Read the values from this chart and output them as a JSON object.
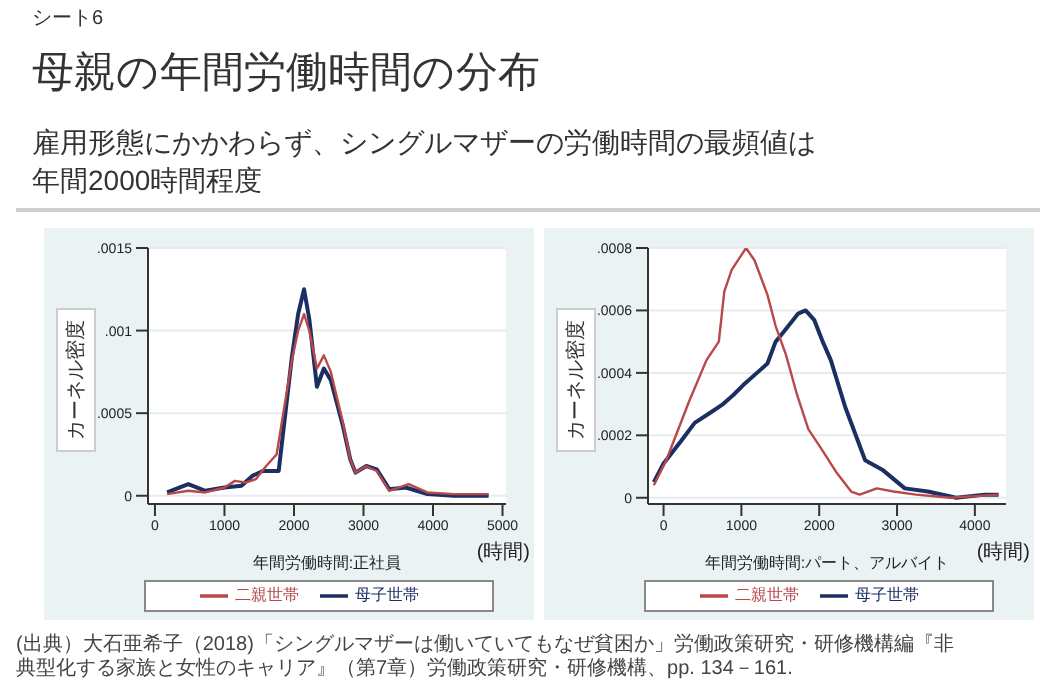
{
  "chart_data": [
    {
      "type": "line",
      "title": "母親の年間労働時間の分布",
      "subtitle": "雇用形態にかかわらず、シングルマザーの労働時間の最頻値は年間2000時間程度",
      "annotations": [
        "シート6",
        "(時間)",
        "(出典）大石亜希子（2018)「シングルマザーは働いていてもなぜ貧困か」労働政策研究・研修機構編『非典型化する家族と女性のキャリア』（第7章）労働政策研究・研修機構、pp. 134－161."
      ],
      "xlabel": "年間労働時間:正社員",
      "ylabel": "カーネル密度",
      "xlim": [
        -100,
        5050
      ],
      "xticks": [
        0,
        1000,
        2000,
        3000,
        4000,
        5000
      ],
      "ylim": [
        -5e-05,
        0.0015
      ],
      "yticks": [
        {
          "value": 0,
          "label": "0"
        },
        {
          "value": 0.0005,
          "label": ".0005"
        },
        {
          "value": 0.001,
          "label": ".001"
        },
        {
          "value": 0.0015,
          "label": ".0015"
        }
      ],
      "grid": "y",
      "legend": "bottom",
      "marker": "none",
      "line_style": "solid",
      "series": [
        {
          "name": "母子世帯",
          "color": "#1b2f63",
          "x": [
            175,
            480,
            725,
            1000,
            1245,
            1400,
            1550,
            1780,
            1970,
            2060,
            2145,
            2220,
            2330,
            2430,
            2530,
            2700,
            2810,
            2885,
            3040,
            3190,
            3370,
            3610,
            3920,
            4300,
            4800
          ],
          "values": [
            2e-05,
            7e-05,
            3e-05,
            5e-05,
            6e-05,
            0.00012,
            0.00015,
            0.00015,
            0.00084,
            0.0011,
            0.00125,
            0.00107,
            0.00066,
            0.00077,
            0.0007,
            0.00043,
            0.00022,
            0.00014,
            0.00018,
            0.00016,
            4e-05,
            5e-05,
            1e-05,
            0,
            0
          ]
        },
        {
          "name": "二親世帯",
          "color": "#b8484a",
          "x": [
            175,
            480,
            725,
            1000,
            1150,
            1300,
            1450,
            1600,
            1750,
            1970,
            2060,
            2145,
            2220,
            2330,
            2430,
            2530,
            2700,
            2810,
            2885,
            3040,
            3190,
            3370,
            3650,
            3920,
            4300,
            4800
          ],
          "values": [
            1e-05,
            3e-05,
            2e-05,
            5e-05,
            9e-05,
            8e-05,
            0.0001,
            0.00018,
            0.00025,
            0.00082,
            0.001,
            0.0011,
            0.001,
            0.00077,
            0.00085,
            0.00075,
            0.00045,
            0.00022,
            0.00014,
            0.00018,
            0.00015,
            3e-05,
            7e-05,
            2e-05,
            1e-05,
            1e-05
          ]
        }
      ]
    },
    {
      "type": "line",
      "annotations": [
        "(時間)"
      ],
      "xlabel": "年間労働時間:パート、アルバイト",
      "ylabel": "カーネル密度",
      "xlim": [
        -200,
        4400
      ],
      "xticks": [
        0,
        1000,
        2000,
        3000,
        4000
      ],
      "ylim": [
        -2e-05,
        0.0008
      ],
      "yticks": [
        {
          "value": 0,
          "label": "0"
        },
        {
          "value": 0.0002,
          "label": ".0002"
        },
        {
          "value": 0.0004,
          "label": ".0004"
        },
        {
          "value": 0.0006,
          "label": ".0006"
        },
        {
          "value": 0.0008,
          "label": ".0008"
        }
      ],
      "grid": "y",
      "legend": "bottom",
      "marker": "none",
      "line_style": "solid",
      "series": [
        {
          "name": "母子世帯",
          "color": "#1b2f63",
          "x": [
            -125,
            0,
            220,
            400,
            585,
            765,
            900,
            1020,
            1200,
            1335,
            1440,
            1570,
            1730,
            1825,
            1935,
            2045,
            2150,
            2335,
            2590,
            2810,
            3100,
            3395,
            3760,
            4125,
            4305
          ],
          "values": [
            5e-05,
            0.00011,
            0.00018,
            0.00024,
            0.00027,
            0.0003,
            0.00033,
            0.00036,
            0.0004,
            0.00043,
            0.0005,
            0.00054,
            0.00059,
            0.0006,
            0.00057,
            0.0005,
            0.00044,
            0.00029,
            0.00012,
            9e-05,
            3e-05,
            2e-05,
            0,
            1e-05,
            1e-05
          ]
        },
        {
          "name": "二親世帯",
          "color": "#b8484a",
          "x": [
            -125,
            35,
            330,
            550,
            710,
            780,
            875,
            1060,
            1170,
            1335,
            1440,
            1570,
            1715,
            1860,
            2020,
            2225,
            2410,
            2520,
            2740,
            2955,
            3245,
            3685,
            4305
          ],
          "values": [
            4e-05,
            0.00012,
            0.00031,
            0.00044,
            0.0005,
            0.00066,
            0.00073,
            0.0008,
            0.00076,
            0.00065,
            0.00055,
            0.00046,
            0.00033,
            0.00022,
            0.00016,
            8e-05,
            2e-05,
            1e-05,
            3e-05,
            2e-05,
            1e-05,
            0,
            1e-05
          ]
        }
      ]
    }
  ]
}
